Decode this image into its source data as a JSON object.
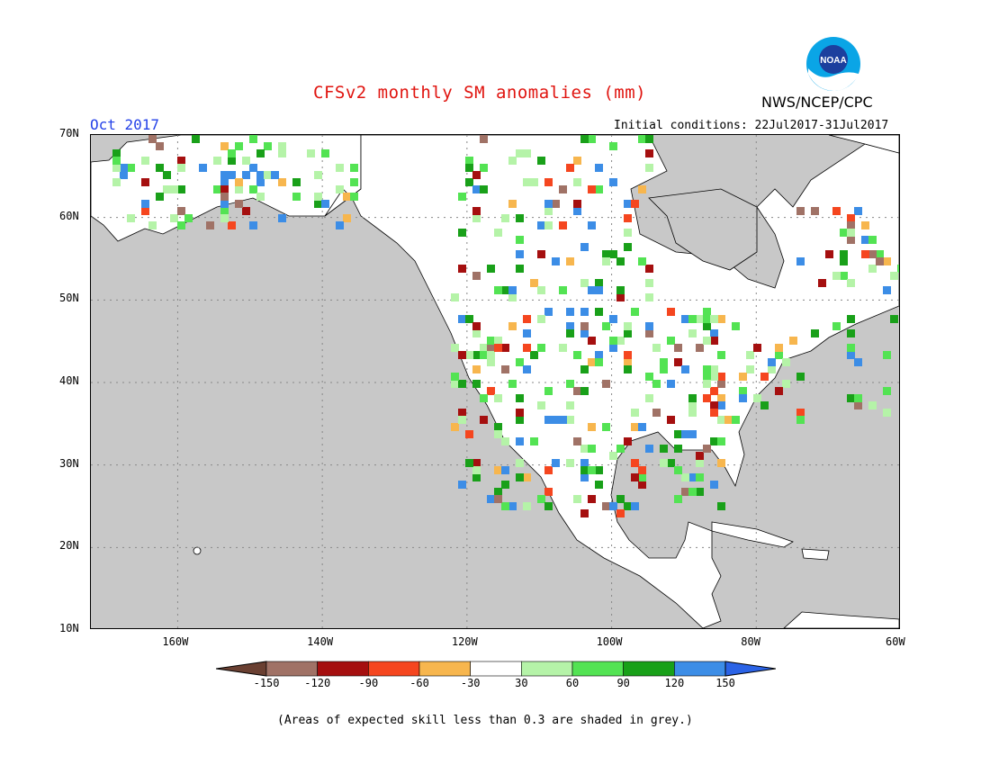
{
  "header": {
    "title": "CFSv2 monthly SM anomalies (mm)",
    "organization": "NWS/NCEP/CPC",
    "logo_text": "NOAA",
    "month": "Oct 2017",
    "initial_conditions": "Initial conditions: 22Jul2017-31Jul2017"
  },
  "map": {
    "lat_labels": [
      "70N",
      "60N",
      "50N",
      "40N",
      "30N",
      "20N",
      "10N"
    ],
    "lon_labels": [
      "160W",
      "140W",
      "120W",
      "100W",
      "80W",
      "60W"
    ],
    "background_color": "#c8c8c8",
    "land_color": "#ffffff",
    "extent": {
      "lon": [
        -172,
        -60
      ],
      "lat": [
        10,
        70
      ]
    }
  },
  "colorbar": {
    "labels": [
      "-150",
      "-120",
      "-90",
      "-60",
      "-30",
      "30",
      "60",
      "90",
      "120",
      "150"
    ],
    "colors": [
      "#6a4032",
      "#a07266",
      "#a50f0f",
      "#f5461f",
      "#f7b64e",
      "#ffffff",
      "#b5f3a8",
      "#53e353",
      "#19a019",
      "#3c8de6",
      "#2b63e6"
    ]
  },
  "footnote": "(Areas of expected skill less than 0.3 are shaded in grey.)"
}
